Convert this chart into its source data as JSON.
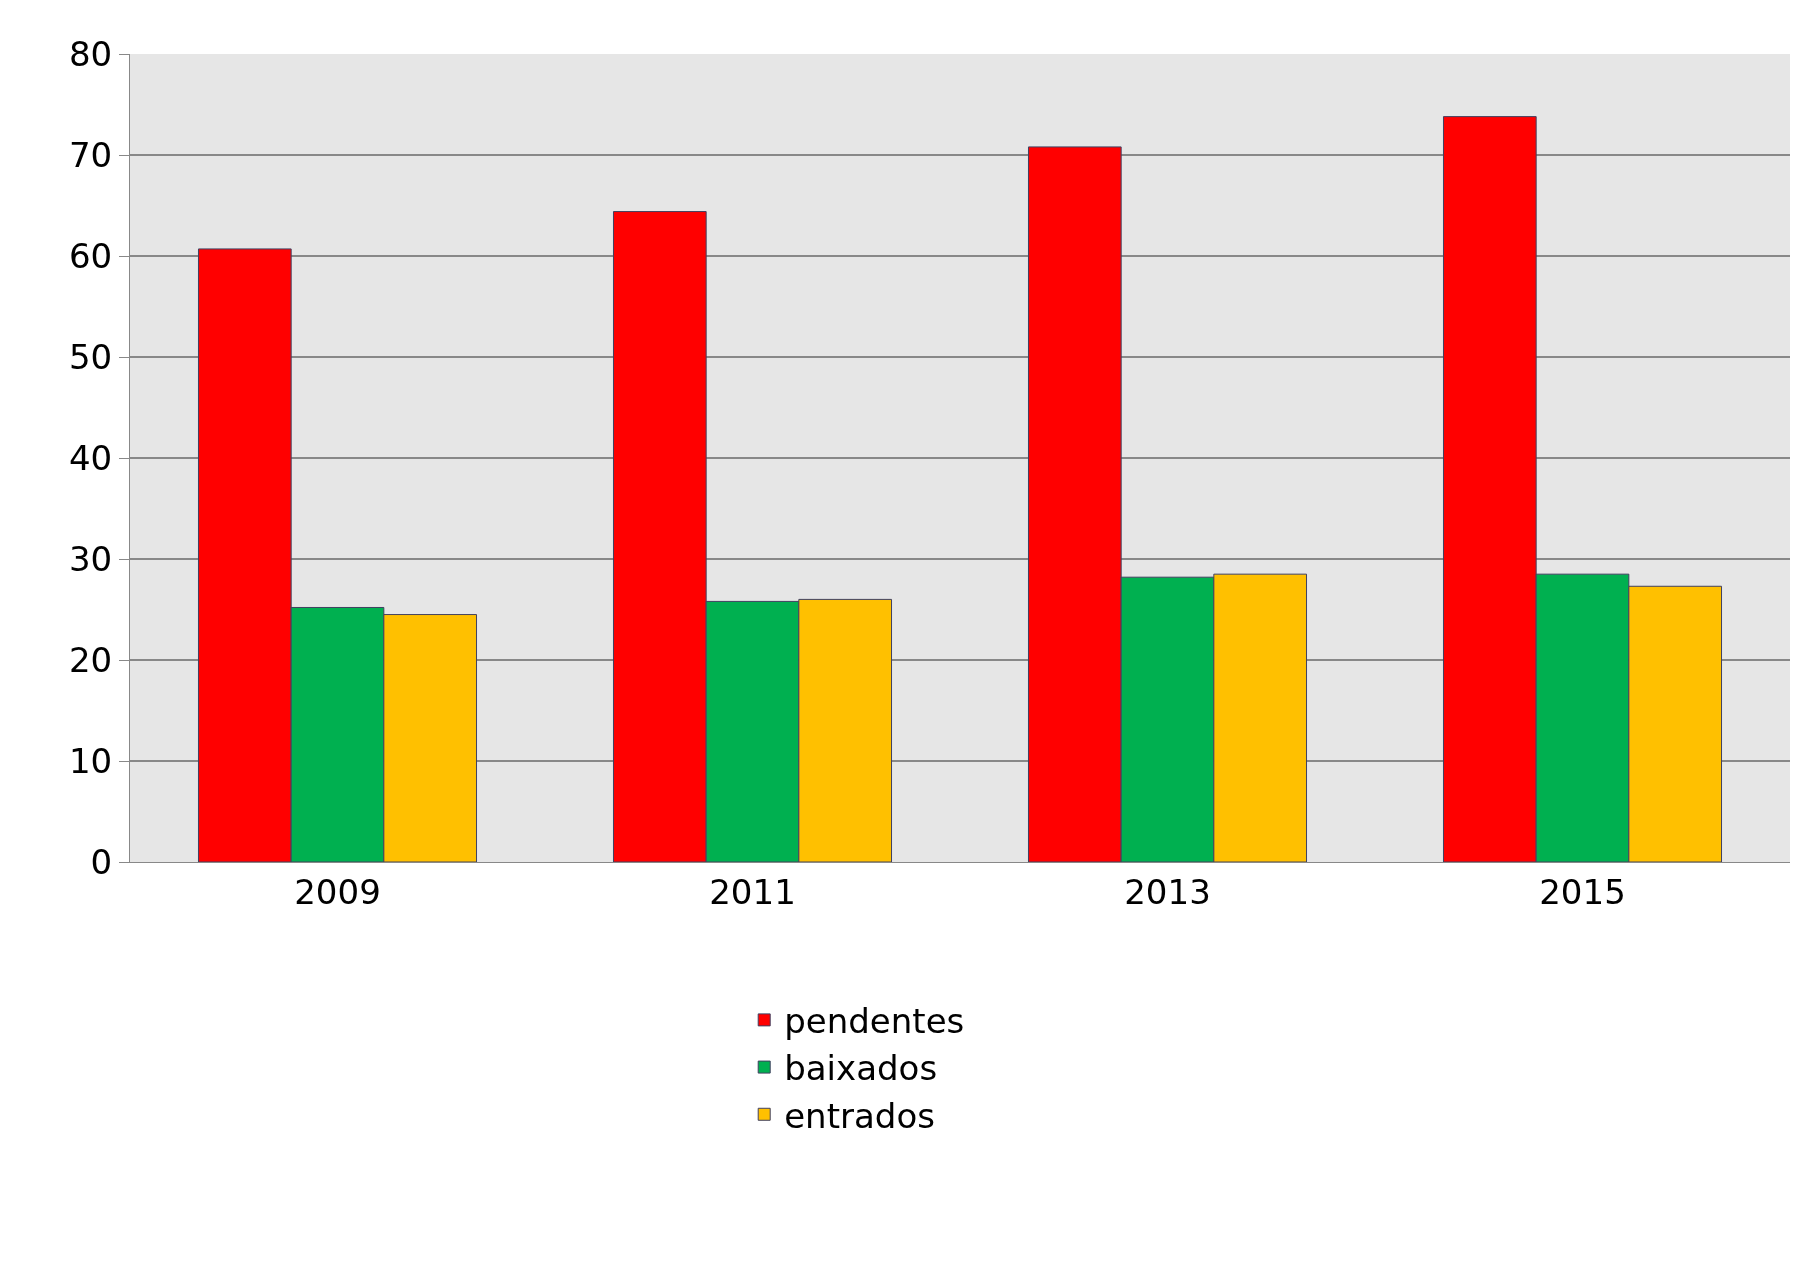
{
  "chart_data": {
    "type": "bar",
    "categories": [
      "2009",
      "2011",
      "2013",
      "2015"
    ],
    "series": [
      {
        "name": "pendentes",
        "color": "#ff0000",
        "values": [
          60.7,
          64.4,
          70.8,
          73.8
        ]
      },
      {
        "name": "baixados",
        "color": "#00b050",
        "values": [
          25.2,
          25.8,
          28.2,
          28.5
        ]
      },
      {
        "name": "entrados",
        "color": "#ffc000",
        "values": [
          24.5,
          26.0,
          28.5,
          27.3
        ]
      }
    ],
    "ylim": [
      0,
      80
    ],
    "yticks": [
      0,
      10,
      20,
      30,
      40,
      50,
      60,
      70,
      80
    ],
    "grid": "y",
    "legend": "bottom"
  }
}
